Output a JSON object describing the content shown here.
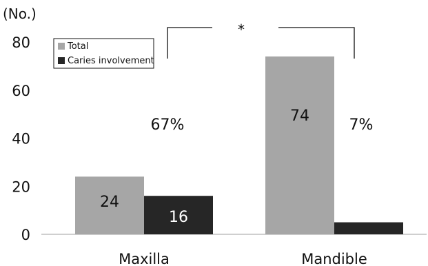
{
  "chart_data": {
    "type": "bar",
    "ylabel": "(No.)",
    "ylim": [
      0,
      80
    ],
    "yticks": [
      0,
      20,
      40,
      60,
      80
    ],
    "categories": [
      "Maxilla",
      "Mandible"
    ],
    "series": [
      {
        "name": "Total",
        "values": [
          24,
          74
        ],
        "color": "#a6a6a6",
        "label_color": "#111111"
      },
      {
        "name": "Caries involvement",
        "values": [
          16,
          5
        ],
        "color": "#262626",
        "label_color": "#ffffff"
      }
    ],
    "data_labels": [
      [
        "24",
        "74"
      ],
      [
        "16",
        "5"
      ]
    ],
    "percent_annotations": [
      "67%",
      "7%"
    ],
    "significance_marker": "*",
    "legend_position": "top-left",
    "grid": false
  }
}
